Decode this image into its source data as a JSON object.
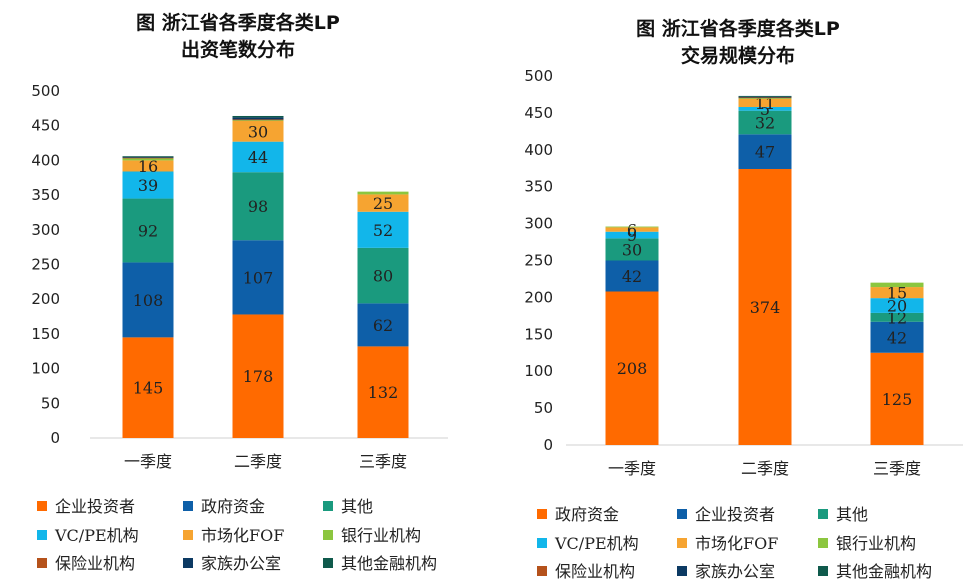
{
  "chart_data": [
    {
      "type": "bar",
      "stacked": true,
      "title_line1": "图  浙江省各季度各类LP",
      "title_line2": "出资笔数分布",
      "categories": [
        "一季度",
        "二季度",
        "三季度"
      ],
      "ylim": [
        0,
        500
      ],
      "yticks": [
        0,
        50,
        100,
        150,
        200,
        250,
        300,
        350,
        400,
        450,
        500
      ],
      "legend_position": "bottom",
      "series": [
        {
          "name": "企业投资者",
          "color": "#FF6A00",
          "values": [
            145,
            178,
            132
          ]
        },
        {
          "name": "政府资金",
          "color": "#0E5FA8",
          "values": [
            108,
            107,
            62
          ]
        },
        {
          "name": "其他",
          "color": "#1A9A7E",
          "values": [
            92,
            98,
            80
          ]
        },
        {
          "name": "VC/PE机构",
          "color": "#12B6EA",
          "values": [
            39,
            44,
            52
          ]
        },
        {
          "name": "市场化FOF",
          "color": "#F6A431",
          "values": [
            16,
            30,
            25
          ]
        },
        {
          "name": "银行业机构",
          "color": "#8CC63F",
          "values": [
            3,
            1,
            4
          ]
        },
        {
          "name": "保险业机构",
          "color": "#B5521B",
          "values": [
            1,
            1,
            0
          ]
        },
        {
          "name": "家族办公室",
          "color": "#0C3A63",
          "values": [
            1,
            3,
            0
          ]
        },
        {
          "name": "其他金融机构",
          "color": "#0F5A4C",
          "values": [
            1,
            2,
            0
          ]
        }
      ],
      "value_labels": [
        [
          "145",
          "178",
          "132"
        ],
        [
          "108",
          "107",
          "62"
        ],
        [
          "92",
          "98",
          "80"
        ],
        [
          "39",
          "44",
          "52"
        ],
        [
          "16",
          "30",
          "25"
        ],
        [
          "",
          "",
          ""
        ],
        [
          "",
          "",
          ""
        ],
        [
          "",
          "",
          ""
        ],
        [
          "",
          "",
          ""
        ]
      ]
    },
    {
      "type": "bar",
      "stacked": true,
      "title_line1": "图  浙江省各季度各类LP",
      "title_line2": "交易规模分布",
      "categories": [
        "一季度",
        "二季度",
        "三季度"
      ],
      "ylim": [
        0,
        500
      ],
      "yticks": [
        0,
        50,
        100,
        150,
        200,
        250,
        300,
        350,
        400,
        450,
        500
      ],
      "legend_position": "bottom",
      "series": [
        {
          "name": "政府资金",
          "color": "#FF6A00",
          "values": [
            208,
            374,
            125
          ]
        },
        {
          "name": "企业投资者",
          "color": "#0E5FA8",
          "values": [
            42,
            47,
            42
          ]
        },
        {
          "name": "其他",
          "color": "#1A9A7E",
          "values": [
            30,
            32,
            12
          ]
        },
        {
          "name": "VC/PE机构",
          "color": "#12B6EA",
          "values": [
            9,
            5,
            20
          ]
        },
        {
          "name": "市场化FOF",
          "color": "#F6A431",
          "values": [
            6,
            11,
            15
          ]
        },
        {
          "name": "银行业机构",
          "color": "#8CC63F",
          "values": [
            1,
            1,
            6
          ]
        },
        {
          "name": "保险业机构",
          "color": "#B5521B",
          "values": [
            0,
            1,
            0
          ]
        },
        {
          "name": "家族办公室",
          "color": "#0C3A63",
          "values": [
            0,
            1,
            0
          ]
        },
        {
          "name": "其他金融机构",
          "color": "#0F5A4C",
          "values": [
            0,
            1,
            0
          ]
        }
      ],
      "value_labels": [
        [
          "208",
          "374",
          "125"
        ],
        [
          "42",
          "47",
          "42"
        ],
        [
          "30",
          "32",
          "12"
        ],
        [
          "9",
          "5",
          "20"
        ],
        [
          "6",
          "11",
          "15"
        ],
        [
          "",
          "",
          ""
        ],
        [
          "",
          "",
          ""
        ],
        [
          "",
          "",
          ""
        ],
        [
          "",
          "",
          ""
        ]
      ]
    }
  ]
}
